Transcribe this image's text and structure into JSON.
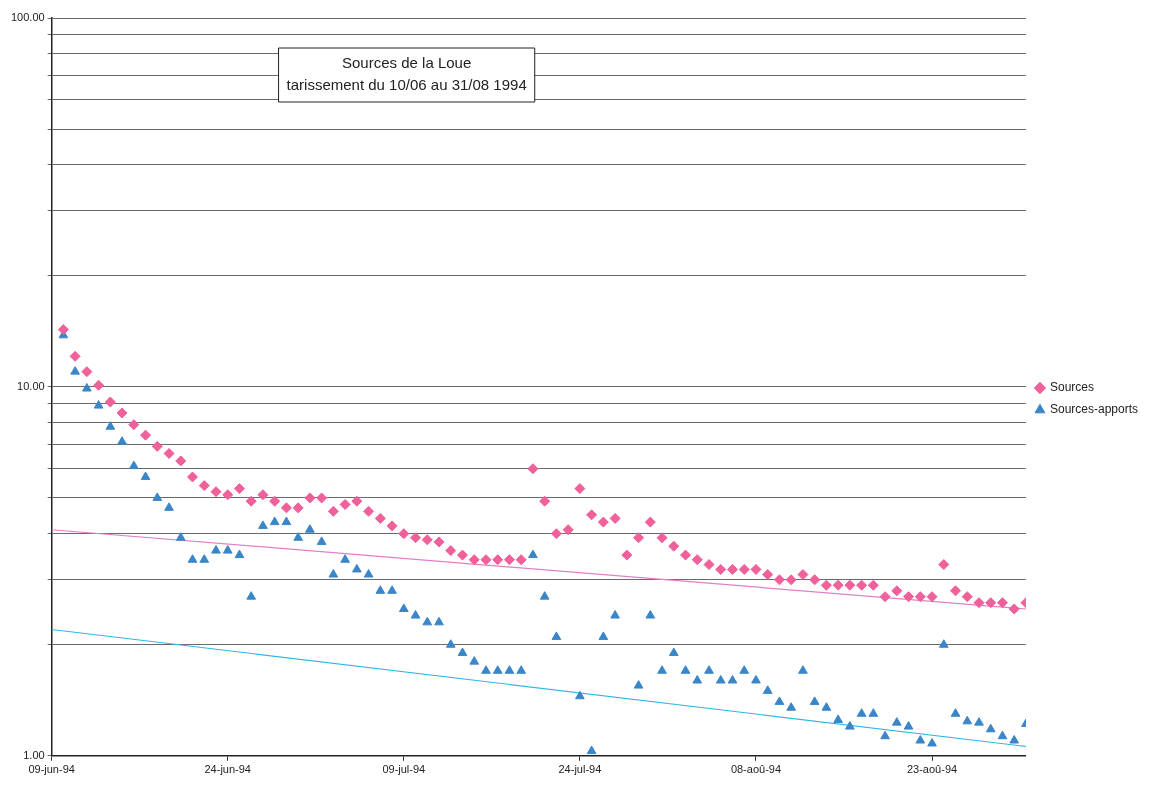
{
  "chart_data": {
    "type": "scatter",
    "title": "Sources de la Loue",
    "subtitle": "tarissement du 10/06 au 31/08 1994",
    "x": [
      "1994-06-10",
      "1994-06-11",
      "1994-06-12",
      "1994-06-13",
      "1994-06-14",
      "1994-06-15",
      "1994-06-16",
      "1994-06-17",
      "1994-06-18",
      "1994-06-19",
      "1994-06-20",
      "1994-06-21",
      "1994-06-22",
      "1994-06-23",
      "1994-06-24",
      "1994-06-25",
      "1994-06-26",
      "1994-06-27",
      "1994-06-28",
      "1994-06-29",
      "1994-06-30",
      "1994-07-01",
      "1994-07-02",
      "1994-07-03",
      "1994-07-04",
      "1994-07-05",
      "1994-07-06",
      "1994-07-07",
      "1994-07-08",
      "1994-07-09",
      "1994-07-10",
      "1994-07-11",
      "1994-07-12",
      "1994-07-13",
      "1994-07-14",
      "1994-07-15",
      "1994-07-16",
      "1994-07-17",
      "1994-07-18",
      "1994-07-19",
      "1994-07-20",
      "1994-07-21",
      "1994-07-22",
      "1994-07-23",
      "1994-07-24",
      "1994-07-25",
      "1994-07-26",
      "1994-07-27",
      "1994-07-28",
      "1994-07-29",
      "1994-07-30",
      "1994-07-31",
      "1994-08-01",
      "1994-08-02",
      "1994-08-03",
      "1994-08-04",
      "1994-08-05",
      "1994-08-06",
      "1994-08-07",
      "1994-08-08",
      "1994-08-09",
      "1994-08-10",
      "1994-08-11",
      "1994-08-12",
      "1994-08-13",
      "1994-08-14",
      "1994-08-15",
      "1994-08-16",
      "1994-08-17",
      "1994-08-18",
      "1994-08-19",
      "1994-08-20",
      "1994-08-21",
      "1994-08-22",
      "1994-08-23",
      "1994-08-24",
      "1994-08-25",
      "1994-08-26",
      "1994-08-27",
      "1994-08-28",
      "1994-08-29",
      "1994-08-30",
      "1994-08-31"
    ],
    "series": [
      {
        "name": "Sources",
        "color": "#f0609a",
        "marker": "diamond",
        "values": [
          14.3,
          12.1,
          11.0,
          10.1,
          9.1,
          8.5,
          7.9,
          7.4,
          6.9,
          6.6,
          6.3,
          5.7,
          5.4,
          5.2,
          5.1,
          5.3,
          4.9,
          5.1,
          4.9,
          4.7,
          4.7,
          5.0,
          5.0,
          4.6,
          4.8,
          4.9,
          4.6,
          4.4,
          4.2,
          4.0,
          3.9,
          3.85,
          3.8,
          3.6,
          3.5,
          3.4,
          3.4,
          3.4,
          3.4,
          3.4,
          6.0,
          4.9,
          4.0,
          4.1,
          5.3,
          4.5,
          4.3,
          4.4,
          3.5,
          3.9,
          4.3,
          3.9,
          3.7,
          3.5,
          3.4,
          3.3,
          3.2,
          3.2,
          3.2,
          3.2,
          3.1,
          3.0,
          3.0,
          3.1,
          3.0,
          2.9,
          2.9,
          2.9,
          2.9,
          2.9,
          2.7,
          2.8,
          2.7,
          2.7,
          2.7,
          3.3,
          2.8,
          2.7,
          2.6,
          2.6,
          2.6,
          2.5,
          2.6
        ]
      },
      {
        "name": "Sources-apports",
        "color": "#3a86c8",
        "marker": "triangle",
        "values": [
          13.8,
          11.0,
          9.9,
          8.9,
          7.8,
          7.1,
          6.1,
          5.7,
          5.0,
          4.7,
          3.9,
          3.4,
          3.4,
          3.6,
          3.6,
          3.5,
          2.7,
          4.2,
          4.3,
          4.3,
          3.9,
          4.1,
          3.8,
          3.1,
          3.4,
          3.2,
          3.1,
          2.8,
          2.8,
          2.5,
          2.4,
          2.3,
          2.3,
          2.0,
          1.9,
          1.8,
          1.7,
          1.7,
          1.7,
          1.7,
          3.5,
          2.7,
          2.1,
          null,
          1.45,
          1.03,
          2.1,
          2.4,
          null,
          1.55,
          2.4,
          1.7,
          1.9,
          1.7,
          1.6,
          1.7,
          1.6,
          1.6,
          1.7,
          1.6,
          1.5,
          1.4,
          1.35,
          1.7,
          1.4,
          1.35,
          1.25,
          1.2,
          1.3,
          1.3,
          1.13,
          1.23,
          1.2,
          1.1,
          1.08,
          2.0,
          1.3,
          1.24,
          1.23,
          1.18,
          1.13,
          1.1,
          1.22
        ]
      },
      {
        "type": "line",
        "color": "#e080c8",
        "marker": "none",
        "x": [
          "1994-06-09",
          "1994-08-31"
        ],
        "values": [
          4.1,
          2.5
        ]
      },
      {
        "type": "line",
        "color": "#33b5e5",
        "marker": "none",
        "x": [
          "1994-06-09",
          "1994-08-31"
        ],
        "values": [
          2.2,
          1.06
        ]
      }
    ],
    "xlim": [
      "1994-06-09",
      "1994-08-31"
    ],
    "xticks": [
      {
        "value": "1994-06-09",
        "label": "09-jun-94"
      },
      {
        "value": "1994-06-24",
        "label": "24-jun-94"
      },
      {
        "value": "1994-07-09",
        "label": "09-jul-94"
      },
      {
        "value": "1994-07-24",
        "label": "24-jul-94"
      },
      {
        "value": "1994-08-08",
        "label": "08-aoû-94"
      },
      {
        "value": "1994-08-23",
        "label": "23-aoû-94"
      }
    ],
    "ylim": [
      1,
      100
    ],
    "log": "y",
    "yticks": [
      {
        "value": 1,
        "label": "1.00"
      },
      {
        "value": 2,
        "label": null
      },
      {
        "value": 3,
        "label": null
      },
      {
        "value": 4,
        "label": null
      },
      {
        "value": 5,
        "label": null
      },
      {
        "value": 6,
        "label": null
      },
      {
        "value": 7,
        "label": null
      },
      {
        "value": 8,
        "label": null
      },
      {
        "value": 9,
        "label": null
      },
      {
        "value": 10,
        "label": "10.00"
      },
      {
        "value": 20,
        "label": null
      },
      {
        "value": 30,
        "label": null
      },
      {
        "value": 40,
        "label": null
      },
      {
        "value": 50,
        "label": null
      },
      {
        "value": 60,
        "label": null
      },
      {
        "value": 70,
        "label": null
      },
      {
        "value": 80,
        "label": null
      },
      {
        "value": 90,
        "label": null
      },
      {
        "value": 100,
        "label": "100.00"
      }
    ],
    "grid": "y",
    "legend": "right"
  }
}
